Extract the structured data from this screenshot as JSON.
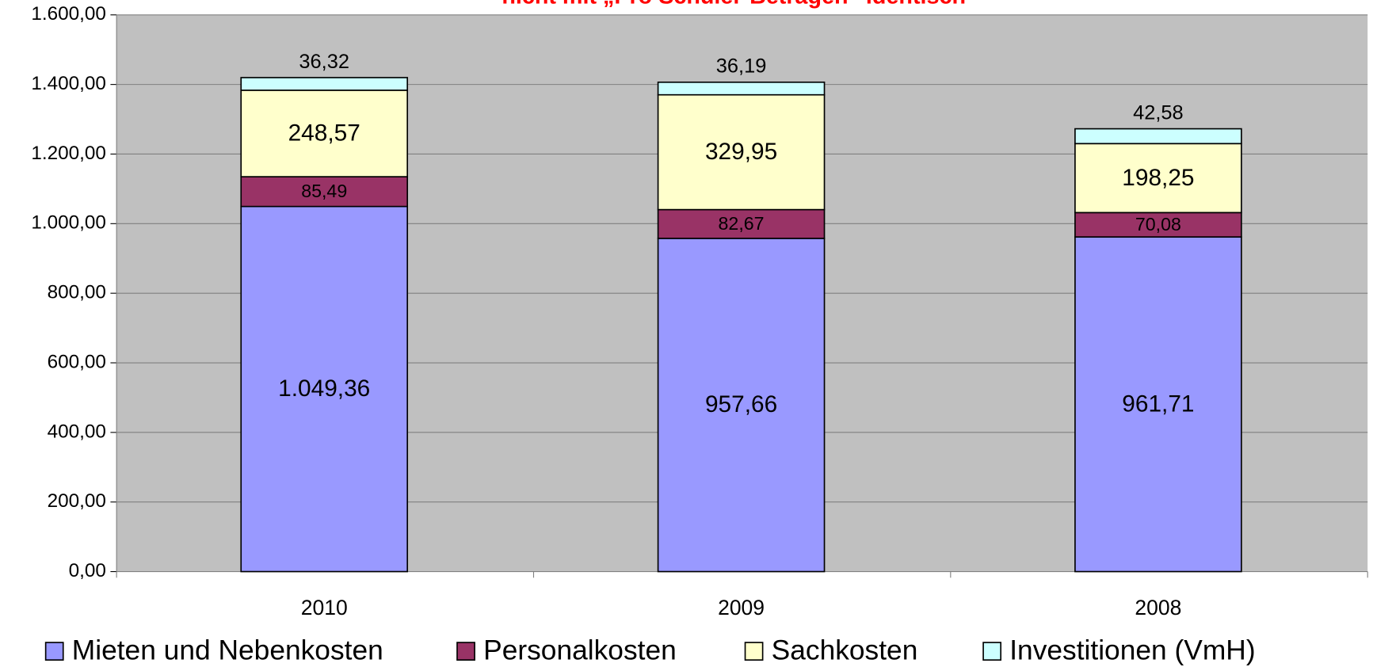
{
  "chart_data": {
    "type": "bar",
    "stacked": true,
    "title": "nicht mit „Pro Schüler-Beträgen“ identisch",
    "categories": [
      "2010",
      "2009",
      "2008"
    ],
    "series": [
      {
        "name": "Mieten und Nebenkosten",
        "color": "#9999ff",
        "values": [
          1049.36,
          957.66,
          961.71
        ],
        "value_labels": [
          "1.049,36",
          "957,66",
          "961,71"
        ]
      },
      {
        "name": "Personalkosten",
        "color": "#993366",
        "values": [
          85.49,
          82.67,
          70.08
        ],
        "value_labels": [
          "85,49",
          "82,67",
          "70,08"
        ]
      },
      {
        "name": "Sachkosten",
        "color": "#ffffcc",
        "values": [
          248.57,
          329.95,
          198.25
        ],
        "value_labels": [
          "248,57",
          "329,95",
          "198,25"
        ]
      },
      {
        "name": "Investitionen (VmH)",
        "color": "#ccffff",
        "values": [
          36.32,
          36.19,
          42.58
        ],
        "value_labels": [
          "36,32",
          "36,19",
          "42,58"
        ]
      }
    ],
    "ylim": [
      0,
      1600
    ],
    "yticks": [
      {
        "value": 0,
        "label": "0,00"
      },
      {
        "value": 200,
        "label": "200,00"
      },
      {
        "value": 400,
        "label": "400,00"
      },
      {
        "value": 600,
        "label": "600,00"
      },
      {
        "value": 800,
        "label": "800,00"
      },
      {
        "value": 1000,
        "label": "1.000,00"
      },
      {
        "value": 1200,
        "label": "1.200,00"
      },
      {
        "value": 1400,
        "label": "1.400,00"
      },
      {
        "value": 1600,
        "label": "1.600,00"
      }
    ],
    "grid": true,
    "legend": "bottom"
  }
}
